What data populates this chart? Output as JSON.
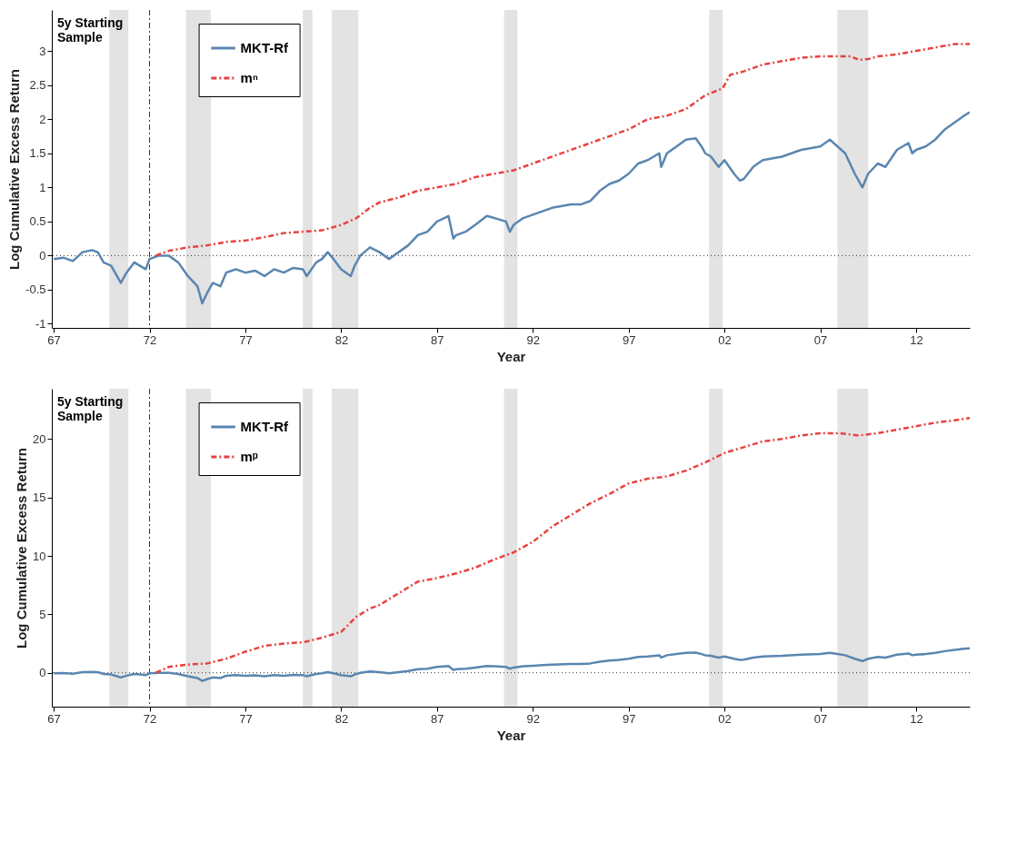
{
  "chart_data": [
    {
      "type": "line",
      "xlabel": "Year",
      "ylabel": "Log Cumulative Excess Return",
      "xlim": [
        1966.9,
        2014.8
      ],
      "ylim": [
        -1.06,
        3.6
      ],
      "xticks": [
        {
          "value": 1967,
          "label": "67"
        },
        {
          "value": 1972,
          "label": "72"
        },
        {
          "value": 1977,
          "label": "77"
        },
        {
          "value": 1982,
          "label": "82"
        },
        {
          "value": 1987,
          "label": "87"
        },
        {
          "value": 1992,
          "label": "92"
        },
        {
          "value": 1997,
          "label": "97"
        },
        {
          "value": 2002,
          "label": "02"
        },
        {
          "value": 2007,
          "label": "07"
        },
        {
          "value": 2012,
          "label": "12"
        }
      ],
      "yticks": [
        -1,
        -0.5,
        0,
        0.5,
        1,
        1.5,
        2,
        2.5,
        3
      ],
      "legend": "top left",
      "series": [
        {
          "name": "MKT-Rf",
          "color": "#5b86b0",
          "line_style": "solid",
          "x": [
            1967.0,
            1967.5,
            1968.0,
            1968.5,
            1969.0,
            1969.3,
            1969.6,
            1970.0,
            1970.3,
            1970.5,
            1970.8,
            1971.2,
            1971.5,
            1971.8,
            1972.0,
            1972.5,
            1973.0,
            1973.5,
            1974.0,
            1974.5,
            1974.75,
            1975.0,
            1975.3,
            1975.7,
            1976.0,
            1976.5,
            1977.0,
            1977.5,
            1978.0,
            1978.5,
            1979.0,
            1979.5,
            1980.0,
            1980.2,
            1980.7,
            1981.0,
            1981.3,
            1981.6,
            1982.0,
            1982.5,
            1982.7,
            1983.0,
            1983.5,
            1984.0,
            1984.5,
            1985.0,
            1985.5,
            1986.0,
            1986.5,
            1987.0,
            1987.6,
            1987.85,
            1988.0,
            1988.5,
            1989.0,
            1989.6,
            1990.0,
            1990.6,
            1990.8,
            1991.0,
            1991.5,
            1992.0,
            1992.5,
            1993.0,
            1994.0,
            1994.5,
            1995.0,
            1995.5,
            1996.0,
            1996.5,
            1997.0,
            1997.5,
            1998.0,
            1998.6,
            1998.7,
            1999.0,
            1999.5,
            2000.0,
            2000.5,
            2000.8,
            2001.0,
            2001.3,
            2001.7,
            2002.0,
            2002.5,
            2002.8,
            2003.0,
            2003.5,
            2004.0,
            2005.0,
            2006.0,
            2007.0,
            2007.5,
            2007.9,
            2008.3,
            2008.8,
            2009.2,
            2009.5,
            2010.0,
            2010.4,
            2011.0,
            2011.6,
            2011.8,
            2012.0,
            2012.5,
            2013.0,
            2013.5,
            2014.0,
            2014.5,
            2014.8
          ],
          "values": [
            -0.05,
            -0.03,
            -0.08,
            0.05,
            0.08,
            0.05,
            -0.1,
            -0.15,
            -0.3,
            -0.4,
            -0.25,
            -0.1,
            -0.15,
            -0.2,
            -0.05,
            0.0,
            0.0,
            -0.1,
            -0.3,
            -0.45,
            -0.7,
            -0.55,
            -0.4,
            -0.45,
            -0.25,
            -0.2,
            -0.25,
            -0.22,
            -0.3,
            -0.2,
            -0.25,
            -0.18,
            -0.2,
            -0.3,
            -0.1,
            -0.05,
            0.05,
            -0.05,
            -0.2,
            -0.3,
            -0.15,
            0.0,
            0.12,
            0.05,
            -0.05,
            0.05,
            0.15,
            0.3,
            0.35,
            0.5,
            0.58,
            0.25,
            0.3,
            0.35,
            0.45,
            0.58,
            0.55,
            0.5,
            0.35,
            0.45,
            0.55,
            0.6,
            0.65,
            0.7,
            0.75,
            0.75,
            0.8,
            0.95,
            1.05,
            1.1,
            1.2,
            1.35,
            1.4,
            1.5,
            1.3,
            1.5,
            1.6,
            1.7,
            1.72,
            1.6,
            1.5,
            1.45,
            1.3,
            1.4,
            1.2,
            1.1,
            1.12,
            1.3,
            1.4,
            1.45,
            1.55,
            1.6,
            1.7,
            1.6,
            1.5,
            1.2,
            1.0,
            1.2,
            1.35,
            1.3,
            1.55,
            1.65,
            1.5,
            1.55,
            1.6,
            1.7,
            1.85,
            1.95,
            2.05,
            2.1
          ]
        },
        {
          "name": "mⁿ",
          "color": "#e8423f",
          "line_style": "dashed",
          "x": [
            1972.33,
            1973,
            1974,
            1975,
            1976,
            1977,
            1978,
            1979,
            1980,
            1981,
            1982,
            1982.8,
            1983.5,
            1984,
            1985,
            1986,
            1987,
            1988,
            1989,
            1990,
            1991,
            1992,
            1993,
            1994,
            1995,
            1996,
            1997,
            1998,
            1999,
            2000,
            2001,
            2001.9,
            2002.3,
            2003,
            2004,
            2005,
            2006,
            2007,
            2008,
            2008.6,
            2009,
            2009.5,
            2010,
            2011,
            2012,
            2013,
            2014,
            2014.8
          ],
          "values": [
            0,
            0.07,
            0.12,
            0.15,
            0.2,
            0.22,
            0.27,
            0.33,
            0.35,
            0.37,
            0.45,
            0.55,
            0.7,
            0.78,
            0.85,
            0.95,
            1.0,
            1.05,
            1.15,
            1.2,
            1.25,
            1.35,
            1.45,
            1.55,
            1.65,
            1.75,
            1.85,
            2.0,
            2.05,
            2.15,
            2.35,
            2.45,
            2.65,
            2.7,
            2.8,
            2.85,
            2.9,
            2.92,
            2.92,
            2.92,
            2.87,
            2.88,
            2.92,
            2.95,
            3.0,
            3.05,
            3.1,
            3.1
          ]
        }
      ],
      "bands": [
        {
          "axis": "x",
          "from": 1969.9,
          "to": 1970.9,
          "color": "#e3e3e3"
        },
        {
          "axis": "x",
          "from": 1973.9,
          "to": 1975.2,
          "color": "#e3e3e3"
        },
        {
          "axis": "x",
          "from": 1980.0,
          "to": 1980.5,
          "color": "#e3e3e3"
        },
        {
          "axis": "x",
          "from": 1981.5,
          "to": 1982.9,
          "color": "#e3e3e3"
        },
        {
          "axis": "x",
          "from": 1990.5,
          "to": 1991.2,
          "color": "#e3e3e3"
        },
        {
          "axis": "x",
          "from": 2001.2,
          "to": 2001.9,
          "color": "#e3e3e3"
        },
        {
          "axis": "x",
          "from": 2007.9,
          "to": 2009.5,
          "color": "#e3e3e3"
        }
      ],
      "ref_lines": [
        {
          "axis": "x",
          "value": 1972.0,
          "label": "5y Starting Sample",
          "color": "#333333",
          "line_style": "dashed"
        },
        {
          "axis": "y",
          "value": 0,
          "color": "#333333",
          "line_style": "dotted"
        }
      ]
    },
    {
      "type": "line",
      "xlabel": "Year",
      "ylabel": "Log Cumulative Excess Return",
      "xlim": [
        1966.9,
        2014.8
      ],
      "ylim": [
        -2.9,
        24.3
      ],
      "xticks": [
        {
          "value": 1967,
          "label": "67"
        },
        {
          "value": 1972,
          "label": "72"
        },
        {
          "value": 1977,
          "label": "77"
        },
        {
          "value": 1982,
          "label": "82"
        },
        {
          "value": 1987,
          "label": "87"
        },
        {
          "value": 1992,
          "label": "92"
        },
        {
          "value": 1997,
          "label": "97"
        },
        {
          "value": 2002,
          "label": "02"
        },
        {
          "value": 2007,
          "label": "07"
        },
        {
          "value": 2012,
          "label": "12"
        }
      ],
      "yticks": [
        0,
        5,
        10,
        15,
        20
      ],
      "legend": "top left",
      "series": [
        {
          "name": "MKT-Rf",
          "color": "#5b86b0",
          "line_style": "solid",
          "x": [
            1967.0,
            1967.5,
            1968.0,
            1968.5,
            1969.0,
            1969.3,
            1969.6,
            1970.0,
            1970.3,
            1970.5,
            1970.8,
            1971.2,
            1971.5,
            1971.8,
            1972.0,
            1972.5,
            1973.0,
            1973.5,
            1974.0,
            1974.5,
            1974.75,
            1975.0,
            1975.3,
            1975.7,
            1976.0,
            1976.5,
            1977.0,
            1977.5,
            1978.0,
            1978.5,
            1979.0,
            1979.5,
            1980.0,
            1980.2,
            1980.7,
            1981.0,
            1981.3,
            1981.6,
            1982.0,
            1982.5,
            1982.7,
            1983.0,
            1983.5,
            1984.0,
            1984.5,
            1985.0,
            1985.5,
            1986.0,
            1986.5,
            1987.0,
            1987.6,
            1987.85,
            1988.0,
            1988.5,
            1989.0,
            1989.6,
            1990.0,
            1990.6,
            1990.8,
            1991.0,
            1991.5,
            1992.0,
            1992.5,
            1993.0,
            1994.0,
            1994.5,
            1995.0,
            1995.5,
            1996.0,
            1996.5,
            1997.0,
            1997.5,
            1998.0,
            1998.6,
            1998.7,
            1999.0,
            1999.5,
            2000.0,
            2000.5,
            2000.8,
            2001.0,
            2001.3,
            2001.7,
            2002.0,
            2002.5,
            2002.8,
            2003.0,
            2003.5,
            2004.0,
            2005.0,
            2006.0,
            2007.0,
            2007.5,
            2007.9,
            2008.3,
            2008.8,
            2009.2,
            2009.5,
            2010.0,
            2010.4,
            2011.0,
            2011.6,
            2011.8,
            2012.0,
            2012.5,
            2013.0,
            2013.5,
            2014.0,
            2014.5,
            2014.8
          ],
          "values": [
            -0.05,
            -0.03,
            -0.08,
            0.05,
            0.08,
            0.05,
            -0.1,
            -0.15,
            -0.3,
            -0.4,
            -0.25,
            -0.1,
            -0.15,
            -0.2,
            -0.05,
            0.0,
            0.0,
            -0.1,
            -0.3,
            -0.45,
            -0.7,
            -0.55,
            -0.4,
            -0.45,
            -0.25,
            -0.2,
            -0.25,
            -0.22,
            -0.3,
            -0.2,
            -0.25,
            -0.18,
            -0.2,
            -0.3,
            -0.1,
            -0.05,
            0.05,
            -0.05,
            -0.2,
            -0.3,
            -0.15,
            0.0,
            0.12,
            0.05,
            -0.05,
            0.05,
            0.15,
            0.3,
            0.35,
            0.5,
            0.58,
            0.25,
            0.3,
            0.35,
            0.45,
            0.58,
            0.55,
            0.5,
            0.35,
            0.45,
            0.55,
            0.6,
            0.65,
            0.7,
            0.75,
            0.75,
            0.8,
            0.95,
            1.05,
            1.1,
            1.2,
            1.35,
            1.4,
            1.5,
            1.3,
            1.5,
            1.6,
            1.7,
            1.72,
            1.6,
            1.5,
            1.45,
            1.3,
            1.4,
            1.2,
            1.1,
            1.12,
            1.3,
            1.4,
            1.45,
            1.55,
            1.6,
            1.7,
            1.6,
            1.5,
            1.2,
            1.0,
            1.2,
            1.35,
            1.3,
            1.55,
            1.65,
            1.5,
            1.55,
            1.6,
            1.7,
            1.85,
            1.95,
            2.05,
            2.1
          ]
        },
        {
          "name": "mᵖ",
          "color": "#e8423f",
          "line_style": "dashed",
          "x": [
            1972.33,
            1973,
            1974,
            1975,
            1976,
            1977,
            1978,
            1979,
            1980,
            1981,
            1982,
            1982.8,
            1983.5,
            1984,
            1985,
            1986,
            1987,
            1988,
            1989,
            1990,
            1991,
            1992,
            1993,
            1994,
            1995,
            1996,
            1997,
            1998,
            1999,
            2000,
            2001,
            2002,
            2003,
            2004,
            2005,
            2006,
            2007,
            2008,
            2009,
            2010,
            2011,
            2012,
            2013,
            2014,
            2014.8
          ],
          "values": [
            0,
            0.5,
            0.7,
            0.8,
            1.2,
            1.8,
            2.3,
            2.5,
            2.6,
            3.0,
            3.5,
            4.8,
            5.5,
            5.8,
            6.8,
            7.8,
            8.1,
            8.5,
            9.0,
            9.7,
            10.3,
            11.2,
            12.5,
            13.5,
            14.5,
            15.3,
            16.2,
            16.6,
            16.8,
            17.3,
            18.0,
            18.8,
            19.3,
            19.8,
            20.0,
            20.3,
            20.5,
            20.5,
            20.3,
            20.5,
            20.8,
            21.1,
            21.4,
            21.6,
            21.8
          ]
        }
      ],
      "bands": [
        {
          "axis": "x",
          "from": 1969.9,
          "to": 1970.9,
          "color": "#e3e3e3"
        },
        {
          "axis": "x",
          "from": 1973.9,
          "to": 1975.2,
          "color": "#e3e3e3"
        },
        {
          "axis": "x",
          "from": 1980.0,
          "to": 1980.5,
          "color": "#e3e3e3"
        },
        {
          "axis": "x",
          "from": 1981.5,
          "to": 1982.9,
          "color": "#e3e3e3"
        },
        {
          "axis": "x",
          "from": 1990.5,
          "to": 1991.2,
          "color": "#e3e3e3"
        },
        {
          "axis": "x",
          "from": 2001.2,
          "to": 2001.9,
          "color": "#e3e3e3"
        },
        {
          "axis": "x",
          "from": 2007.9,
          "to": 2009.5,
          "color": "#e3e3e3"
        }
      ],
      "ref_lines": [
        {
          "axis": "x",
          "value": 1972.0,
          "label": "5y Starting Sample",
          "color": "#333333",
          "line_style": "dashed"
        },
        {
          "axis": "y",
          "value": 0,
          "color": "#333333",
          "line_style": "dotted"
        }
      ]
    }
  ]
}
